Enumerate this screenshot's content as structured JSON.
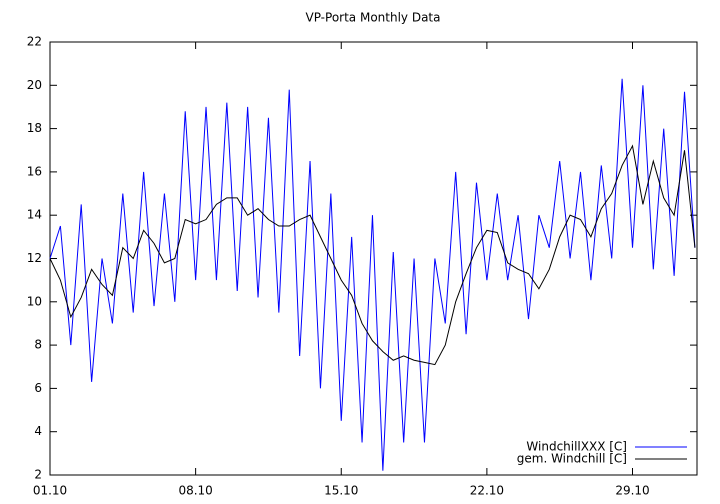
{
  "chart_data": {
    "type": "line",
    "title": "VP-Porta Monthly Data",
    "x": [
      1,
      1.5,
      2,
      2.5,
      3,
      3.5,
      4,
      4.5,
      5,
      5.5,
      6,
      6.5,
      7,
      7.5,
      8,
      8.5,
      9,
      9.5,
      10,
      10.5,
      11,
      11.5,
      12,
      12.5,
      13,
      13.5,
      14,
      14.5,
      15,
      15.5,
      16,
      16.5,
      17,
      17.5,
      18,
      18.5,
      19,
      19.5,
      20,
      20.5,
      21,
      21.5,
      22,
      22.5,
      23,
      23.5,
      24,
      24.5,
      25,
      25.5,
      26,
      26.5,
      27,
      27.5,
      28,
      28.5,
      29,
      29.5,
      30,
      30.5,
      31,
      31.5,
      32
    ],
    "series": [
      {
        "name": "WindchillXXX [C]",
        "color": "#0000ff",
        "values": [
          12,
          13.5,
          8,
          14.5,
          6.3,
          12,
          9,
          15,
          9.5,
          16,
          9.8,
          15,
          10,
          18.8,
          11,
          19,
          11,
          19.2,
          10.5,
          19,
          10.2,
          18.5,
          9.5,
          19.8,
          7.5,
          16.5,
          6,
          15,
          4.5,
          13,
          3.5,
          14,
          2.2,
          12.3,
          3.5,
          12,
          3.5,
          12,
          9,
          16,
          8.5,
          15.5,
          11,
          15,
          11,
          14,
          9.2,
          14,
          12.5,
          16.5,
          12,
          16,
          11,
          16.3,
          12,
          20.3,
          12.5,
          20,
          11.5,
          18,
          11.2,
          19.7,
          12.5
        ]
      },
      {
        "name": "gem. Windchill [C]",
        "color": "#000000",
        "values": [
          12,
          11,
          9.3,
          10.2,
          11.5,
          10.8,
          10.3,
          12.5,
          12,
          13.3,
          12.7,
          11.8,
          12,
          13.8,
          13.6,
          13.8,
          14.5,
          14.8,
          14.8,
          14,
          14.3,
          13.8,
          13.5,
          13.5,
          13.8,
          14,
          13,
          12,
          11,
          10.3,
          9,
          8.2,
          7.7,
          7.3,
          7.5,
          7.3,
          7.2,
          7.1,
          8,
          10,
          11.3,
          12.5,
          13.3,
          13.2,
          11.8,
          11.5,
          11.3,
          10.6,
          11.5,
          13,
          14,
          13.8,
          13,
          14.3,
          15,
          16.3,
          17.2,
          14.5,
          16.5,
          14.8,
          14,
          17,
          12.5
        ]
      }
    ],
    "xlim": [
      1,
      32.1
    ],
    "xticks": [
      {
        "value": 1,
        "label": "01.10"
      },
      {
        "value": 8,
        "label": "08.10"
      },
      {
        "value": 15,
        "label": "15.10"
      },
      {
        "value": 22,
        "label": "22.10"
      },
      {
        "value": 29,
        "label": "29.10"
      }
    ],
    "ylim": [
      2,
      22
    ],
    "yticks": [
      2,
      4,
      6,
      8,
      10,
      12,
      14,
      16,
      18,
      20,
      22
    ],
    "legend": "lower right"
  }
}
